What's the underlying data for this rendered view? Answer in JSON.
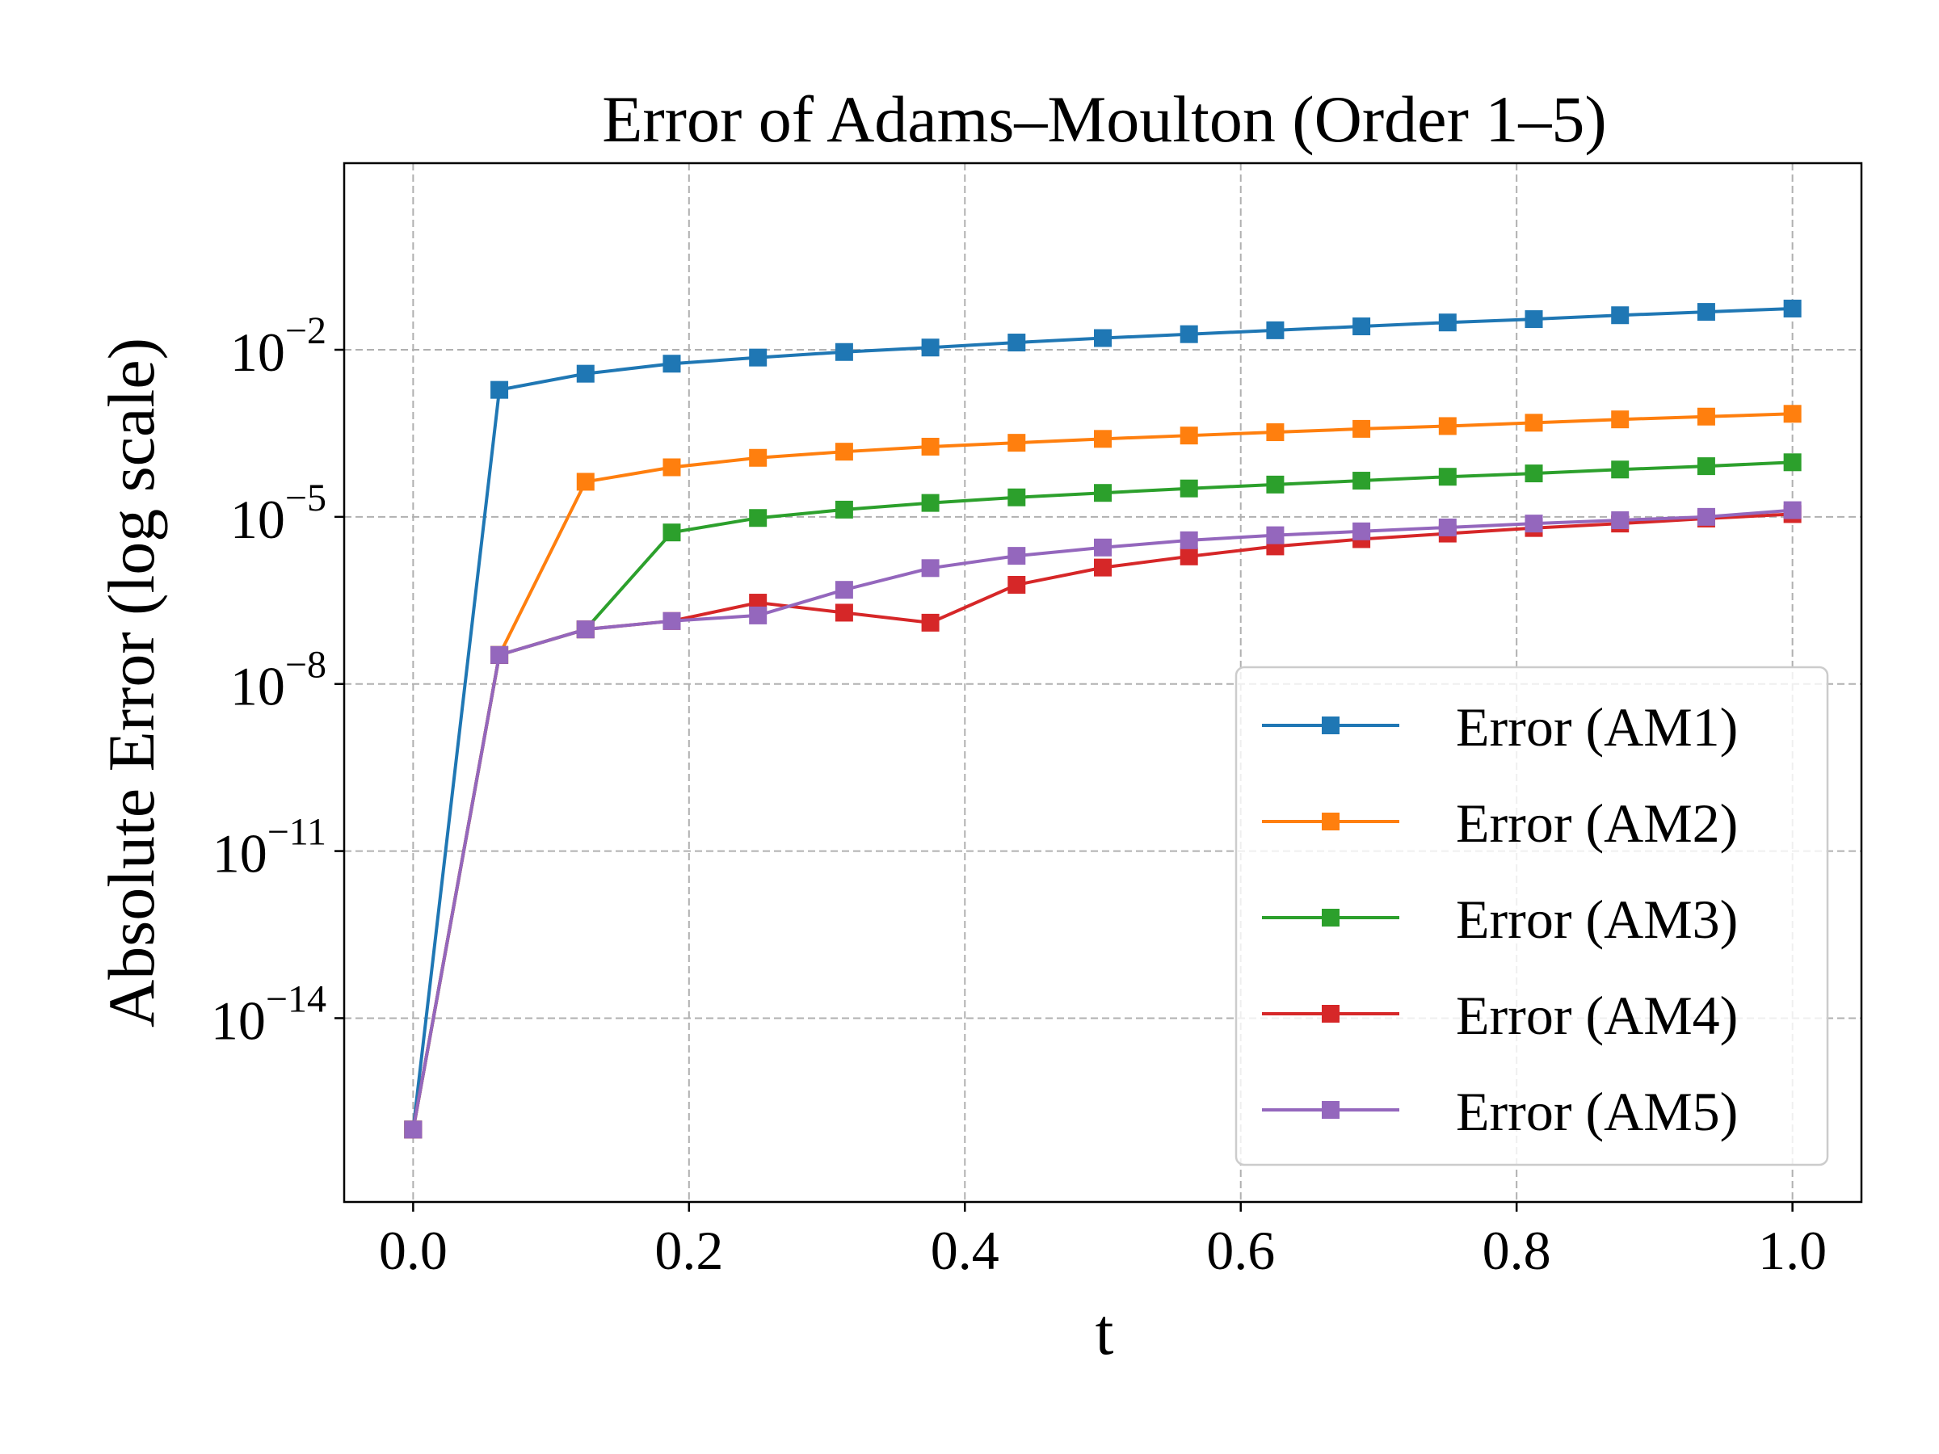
{
  "chart_data": {
    "type": "line",
    "title": "Error of Adams–Moulton (Order 1–5)",
    "xlabel": "t",
    "ylabel": "Absolute Error (log scale)",
    "xscale": "linear",
    "yscale": "log",
    "xlim": [
      -0.05,
      1.05
    ],
    "ylim_log10": [
      -17.3,
      1.35
    ],
    "grid": true,
    "legend_position": "lower-right",
    "x_ticks": [
      {
        "value": 0.0,
        "label": "0.0"
      },
      {
        "value": 0.2,
        "label": "0.2"
      },
      {
        "value": 0.4,
        "label": "0.4"
      },
      {
        "value": 0.6,
        "label": "0.6"
      },
      {
        "value": 0.8,
        "label": "0.8"
      },
      {
        "value": 1.0,
        "label": "1.0"
      }
    ],
    "y_ticks": [
      {
        "exp": -2,
        "base": "10",
        "power": "−2"
      },
      {
        "exp": -5,
        "base": "10",
        "power": "−5"
      },
      {
        "exp": -8,
        "base": "10",
        "power": "−8"
      },
      {
        "exp": -11,
        "base": "10",
        "power": "−11"
      },
      {
        "exp": -14,
        "base": "10",
        "power": "−14"
      }
    ],
    "x": [
      0.0,
      0.0625,
      0.125,
      0.1875,
      0.25,
      0.3125,
      0.375,
      0.4375,
      0.5,
      0.5625,
      0.625,
      0.6875,
      0.75,
      0.8125,
      0.875,
      0.9375,
      1.0
    ],
    "series": [
      {
        "name": "Error (AM1)",
        "color": "#1f77b4",
        "log10_values": [
          -16.0,
          -2.72,
          -2.43,
          -2.25,
          -2.14,
          -2.04,
          -1.96,
          -1.87,
          -1.79,
          -1.72,
          -1.65,
          -1.58,
          -1.51,
          -1.45,
          -1.38,
          -1.32,
          -1.26
        ]
      },
      {
        "name": "Error (AM2)",
        "color": "#ff7f0e",
        "log10_values": [
          -16.0,
          -7.48,
          -4.37,
          -4.11,
          -3.94,
          -3.83,
          -3.74,
          -3.67,
          -3.6,
          -3.54,
          -3.48,
          -3.42,
          -3.37,
          -3.31,
          -3.25,
          -3.2,
          -3.15
        ]
      },
      {
        "name": "Error (AM3)",
        "color": "#2ca02c",
        "log10_values": [
          -16.0,
          -7.48,
          -7.02,
          -5.28,
          -5.02,
          -4.87,
          -4.75,
          -4.65,
          -4.57,
          -4.49,
          -4.42,
          -4.35,
          -4.28,
          -4.22,
          -4.15,
          -4.09,
          -4.02
        ]
      },
      {
        "name": "Error (AM4)",
        "color": "#d62728",
        "log10_values": [
          -16.0,
          -7.48,
          -7.02,
          -6.87,
          -6.54,
          -6.72,
          -6.9,
          -6.22,
          -5.91,
          -5.71,
          -5.53,
          -5.4,
          -5.3,
          -5.2,
          -5.12,
          -5.03,
          -4.95
        ]
      },
      {
        "name": "Error (AM5)",
        "color": "#9467bd",
        "log10_values": [
          -16.0,
          -7.48,
          -7.02,
          -6.87,
          -6.77,
          -6.31,
          -5.92,
          -5.7,
          -5.55,
          -5.42,
          -5.33,
          -5.26,
          -5.19,
          -5.12,
          -5.06,
          -5.0,
          -4.88
        ]
      }
    ]
  }
}
